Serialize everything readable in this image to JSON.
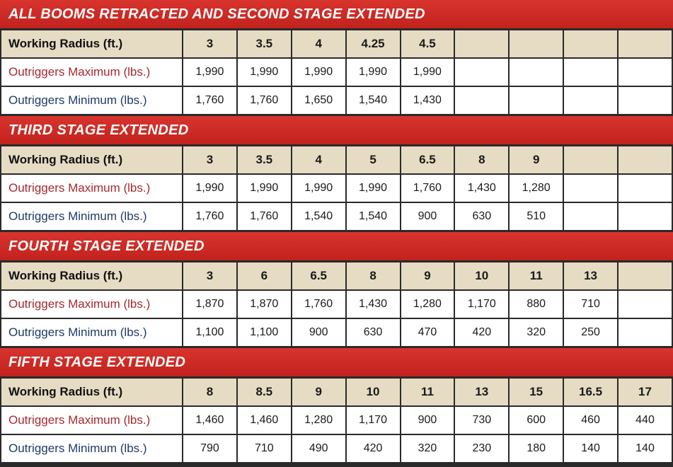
{
  "sections": [
    {
      "title": "ALL BOOMS RETRACTED AND SECOND STAGE EXTENDED",
      "radius_label": "Working Radius (ft.)",
      "radius": [
        "3",
        "3.5",
        "4",
        "4.25",
        "4.5",
        "",
        "",
        "",
        ""
      ],
      "max_label": "Outriggers Maximum (lbs.)",
      "max": [
        "1,990",
        "1,990",
        "1,990",
        "1,990",
        "1,990",
        "",
        "",
        "",
        ""
      ],
      "min_label": "Outriggers Minimum (lbs.)",
      "min": [
        "1,760",
        "1,760",
        "1,650",
        "1,540",
        "1,430",
        "",
        "",
        "",
        ""
      ]
    },
    {
      "title": "THIRD STAGE EXTENDED",
      "radius_label": "Working Radius (ft.)",
      "radius": [
        "3",
        "3.5",
        "4",
        "5",
        "6.5",
        "8",
        "9",
        "",
        ""
      ],
      "max_label": "Outriggers Maximum (lbs.)",
      "max": [
        "1,990",
        "1,990",
        "1,990",
        "1,990",
        "1,760",
        "1,430",
        "1,280",
        "",
        ""
      ],
      "min_label": "Outriggers Minimum (lbs.)",
      "min": [
        "1,760",
        "1,760",
        "1,540",
        "1,540",
        "900",
        "630",
        "510",
        "",
        ""
      ]
    },
    {
      "title": "FOURTH STAGE EXTENDED",
      "radius_label": "Working Radius (ft.)",
      "radius": [
        "3",
        "6",
        "6.5",
        "8",
        "9",
        "10",
        "11",
        "13",
        ""
      ],
      "max_label": "Outriggers Maximum (lbs.)",
      "max": [
        "1,870",
        "1,870",
        "1,760",
        "1,430",
        "1,280",
        "1,170",
        "880",
        "710",
        ""
      ],
      "min_label": "Outriggers Minimum (lbs.)",
      "min": [
        "1,100",
        "1,100",
        "900",
        "630",
        "470",
        "420",
        "320",
        "250",
        ""
      ]
    },
    {
      "title": "FIFTH STAGE EXTENDED",
      "radius_label": "Working Radius (ft.)",
      "radius": [
        "8",
        "8.5",
        "9",
        "10",
        "11",
        "13",
        "15",
        "16.5",
        "17"
      ],
      "max_label": "Outriggers Maximum (lbs.)",
      "max": [
        "1,460",
        "1,460",
        "1,280",
        "1,170",
        "900",
        "730",
        "600",
        "460",
        "440"
      ],
      "min_label": "Outriggers Minimum (lbs.)",
      "min": [
        "790",
        "710",
        "490",
        "420",
        "320",
        "230",
        "180",
        "140",
        "140"
      ]
    }
  ]
}
